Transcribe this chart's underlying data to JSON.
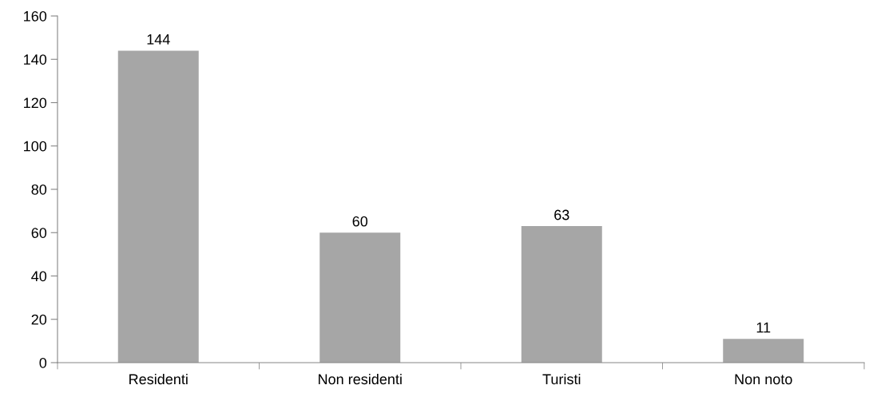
{
  "chart_data": {
    "type": "bar",
    "categories": [
      "Residenti",
      "Non residenti",
      "Turisti",
      "Non noto"
    ],
    "values": [
      144,
      60,
      63,
      11
    ],
    "color": "#a6a6a6",
    "ylim": [
      0,
      160
    ],
    "yticks": [
      0,
      20,
      40,
      60,
      80,
      100,
      120,
      140,
      160
    ],
    "grid": false,
    "data_labels": true
  }
}
